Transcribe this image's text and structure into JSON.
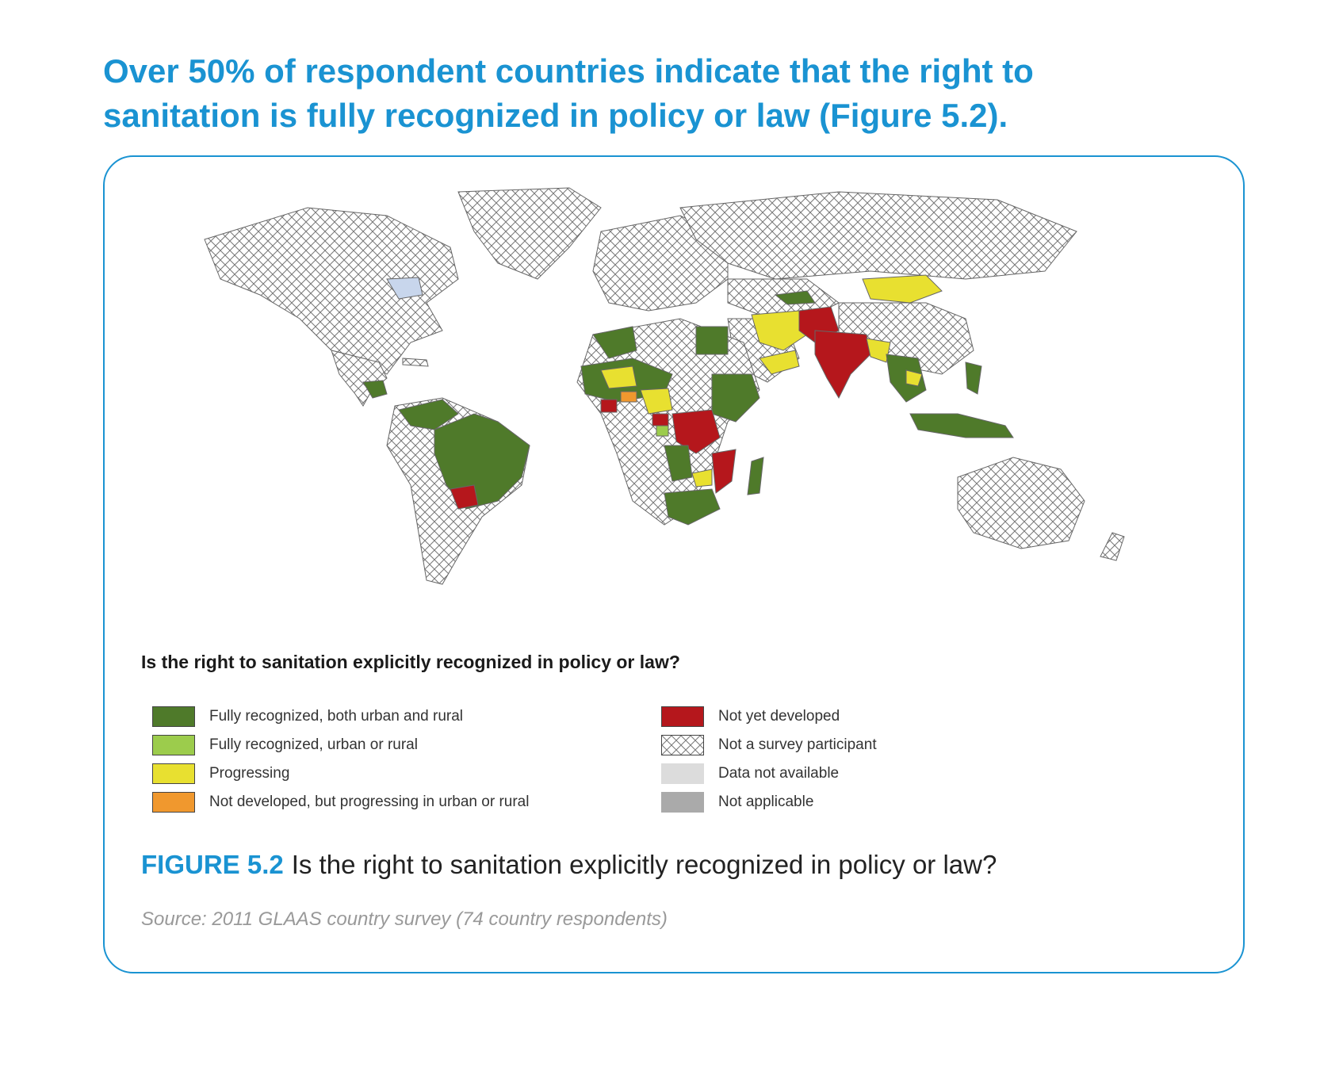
{
  "headline": {
    "line1": "Over 50% of respondent countries indicate that the right to",
    "line2": "sanitation is fully recognized in policy or law (Figure 5.2)."
  },
  "legend": {
    "title": "Is the right to sanitation explicitly recognized in policy or law?",
    "left": [
      {
        "label": "Fully recognized, both urban and rural",
        "color": "#4f7a2a"
      },
      {
        "label": "Fully recognized, urban or rural",
        "color": "#9ccc4c"
      },
      {
        "label": "Progressing",
        "color": "#e8e030"
      },
      {
        "label": "Not developed, but progressing in urban or rural",
        "color": "#f0982e"
      }
    ],
    "right": [
      {
        "label": "Not yet developed",
        "color": "#b5171c"
      },
      {
        "label": "Not a survey participant",
        "color": "hatch"
      },
      {
        "label": "Data not available",
        "color": "#dcdcdc"
      },
      {
        "label": "Not applicable",
        "color": "#aaaaaa"
      }
    ]
  },
  "caption": {
    "figure_label": "FIGURE 5.2",
    "text": "Is the right to sanitation explicitly recognized in policy or law?"
  },
  "source": "Source: 2011 GLAAS country survey (74 country respondents)",
  "colors": {
    "accent": "#1a93d2",
    "full_both": "#4f7a2a",
    "full_one": "#9ccc4c",
    "progressing": "#e8e030",
    "not_dev_progressing": "#f0982e",
    "not_developed": "#b5171c",
    "na_data": "#dcdcdc",
    "not_applicable": "#aaaaaa"
  }
}
